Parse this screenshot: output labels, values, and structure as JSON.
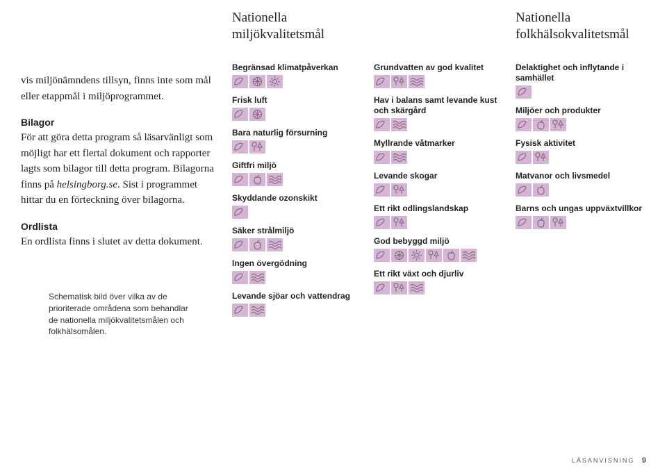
{
  "icon_color": "#d4b5d4",
  "stroke_color": "#8a6a8a",
  "intro": {
    "p1": "vis miljönämndens tillsyn, finns inte som mål eller etappmål i miljöprogrammet.",
    "h1": "Bilagor",
    "p2a": "För att göra detta program så läsarvänligt som möjligt har ett flertal dokument och rapporter lagts som bilagor till detta program. Bilagorna finns på ",
    "p2em": "helsingborg.se",
    "p2b": ". Sist i programmet hittar du en förteckning över bilagorna.",
    "h2": "Ordlista",
    "p3": "En ordlista finns i slutet av detta dokument.",
    "caption": "Schematisk bild över vilka av de prioriterade områdena som behandlar de nationella miljökvalitetsmålen och folkhälsomålen."
  },
  "columns": {
    "c1": {
      "header": "Nationella miljökvalitetsmål",
      "items": [
        {
          "label": "Begränsad klimatpåverkan",
          "icons": [
            "leaf",
            "wheel",
            "sun"
          ]
        },
        {
          "label": "Frisk luft",
          "icons": [
            "leaf",
            "wheel"
          ]
        },
        {
          "label": "Bara naturlig försurning",
          "icons": [
            "leaf",
            "trees"
          ]
        },
        {
          "label": "Giftfri miljö",
          "icons": [
            "leaf",
            "apple",
            "waves"
          ]
        },
        {
          "label": "Skyddande ozonskikt",
          "icons": [
            "leaf"
          ]
        },
        {
          "label": "Säker strålmiljö",
          "icons": [
            "leaf",
            "apple",
            "waves"
          ]
        },
        {
          "label": "Ingen övergödning",
          "icons": [
            "leaf",
            "waves"
          ]
        },
        {
          "label": "Levande sjöar och vattendrag",
          "icons": [
            "leaf",
            "waves"
          ]
        }
      ]
    },
    "c2": {
      "header": "",
      "items": [
        {
          "label": "Grundvatten av god kvalitet",
          "icons": [
            "leaf",
            "trees",
            "waves"
          ]
        },
        {
          "label": "Hav i balans samt levande kust och skärgård",
          "icons": [
            "leaf",
            "waves"
          ]
        },
        {
          "label": "Myllrande våtmarker",
          "icons": [
            "leaf",
            "waves"
          ]
        },
        {
          "label": "Levande skogar",
          "icons": [
            "leaf",
            "trees"
          ]
        },
        {
          "label": "Ett rikt odlingslandskap",
          "icons": [
            "leaf",
            "trees"
          ]
        },
        {
          "label": "God bebyggd miljö",
          "icons": [
            "leaf",
            "wheel",
            "sun",
            "trees",
            "apple",
            "waves"
          ]
        },
        {
          "label": "Ett rikt växt och djurliv",
          "icons": [
            "leaf",
            "trees",
            "waves"
          ]
        }
      ]
    },
    "c3": {
      "header": "Nationella folkhälsokvalitetsmål",
      "items": [
        {
          "label": "Delaktighet och inflytande i samhället",
          "icons": [
            "leaf"
          ]
        },
        {
          "label": "Miljöer och produkter",
          "icons": [
            "leaf",
            "apple",
            "trees"
          ]
        },
        {
          "label": "Fysisk aktivitet",
          "icons": [
            "leaf",
            "trees"
          ]
        },
        {
          "label": "Matvanor och livsmedel",
          "icons": [
            "leaf",
            "apple"
          ]
        },
        {
          "label": "Barns och ungas uppväxtvillkor",
          "icons": [
            "leaf",
            "apple",
            "trees"
          ]
        }
      ]
    }
  },
  "footer": {
    "section": "LÄSANVISNING",
    "page": "9"
  }
}
